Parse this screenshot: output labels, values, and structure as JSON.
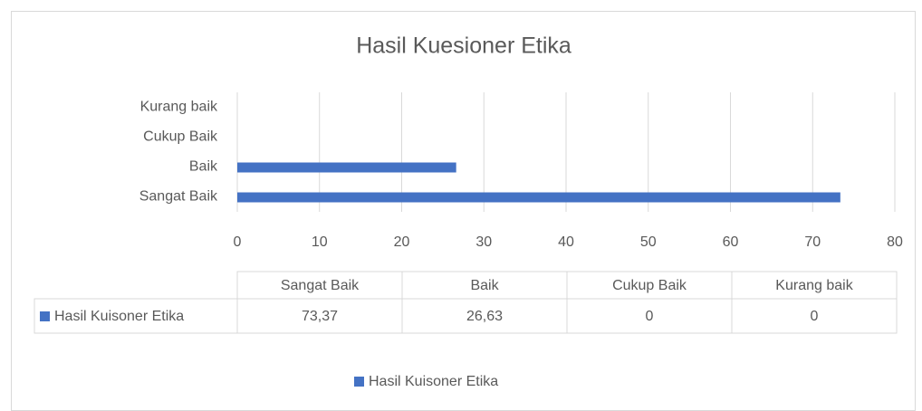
{
  "chart_data": {
    "type": "bar",
    "orientation": "horizontal",
    "title": "Hasil Kuesioner Etika",
    "categories": [
      "Sangat Baik",
      "Baik",
      "Cukup Baik",
      "Kurang baik"
    ],
    "series": [
      {
        "name": "Hasil Kuisoner Etika",
        "color": "#4472c4",
        "values": [
          73.37,
          26.63,
          0,
          0
        ],
        "value_labels": [
          "73,37",
          "26,63",
          "0",
          "0"
        ]
      }
    ],
    "xlim": [
      0,
      80
    ],
    "xticks": [
      0,
      10,
      20,
      30,
      40,
      50,
      60,
      70,
      80
    ],
    "grid": true,
    "legend": "bottom"
  }
}
